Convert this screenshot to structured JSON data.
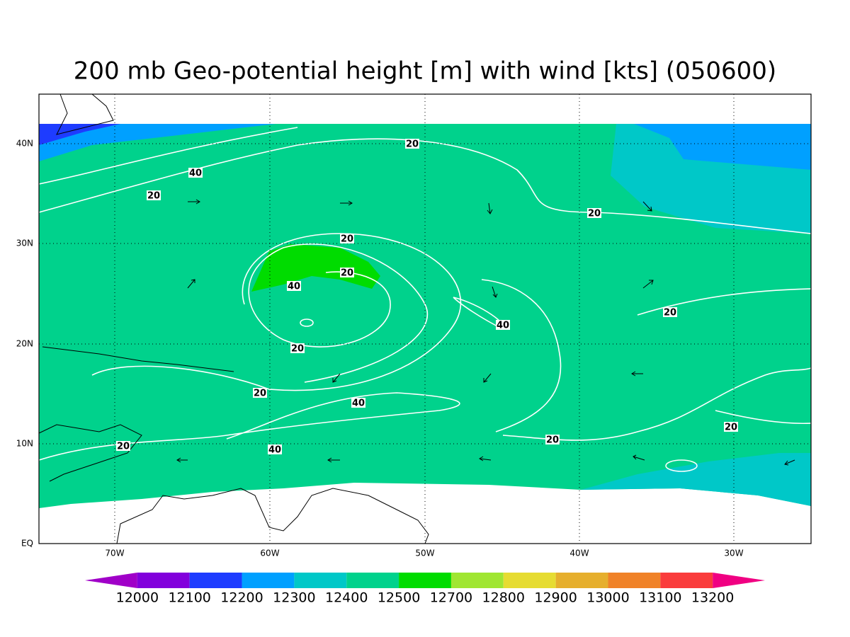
{
  "title": "200 mb Geo-potential height [m] with wind [kts] (050600)",
  "map": {
    "x_labels": [
      "70W",
      "60W",
      "50W",
      "40W",
      "30W"
    ],
    "y_labels": [
      "EQ",
      "10N",
      "20N",
      "30N",
      "40N"
    ],
    "contour_labels": [
      "20",
      "40",
      "20",
      "20",
      "20",
      "20",
      "40",
      "40",
      "20",
      "20",
      "20",
      "40",
      "20",
      "20",
      "20",
      "40"
    ]
  },
  "colorbar": {
    "levels": [
      12000,
      12100,
      12200,
      12300,
      12400,
      12500,
      12700,
      12800,
      12900,
      13000,
      13100,
      13200
    ],
    "colors": [
      "#a000c8",
      "#8200dc",
      "#1e3cff",
      "#00a0ff",
      "#00c8c8",
      "#00d28c",
      "#00dc00",
      "#a0e632",
      "#e6dc32",
      "#e6af2d",
      "#f08228",
      "#fa3c3c",
      "#f00082"
    ]
  }
}
